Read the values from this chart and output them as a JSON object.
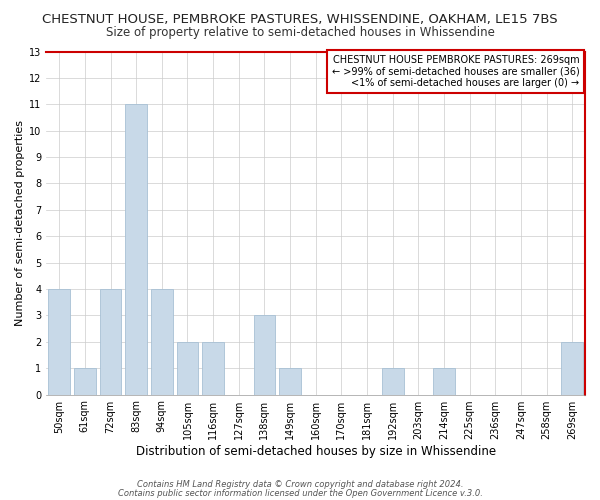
{
  "title": "CHESTNUT HOUSE, PEMBROKE PASTURES, WHISSENDINE, OAKHAM, LE15 7BS",
  "subtitle": "Size of property relative to semi-detached houses in Whissendine",
  "xlabel": "Distribution of semi-detached houses by size in Whissendine",
  "ylabel": "Number of semi-detached properties",
  "categories": [
    "50sqm",
    "61sqm",
    "72sqm",
    "83sqm",
    "94sqm",
    "105sqm",
    "116sqm",
    "127sqm",
    "138sqm",
    "149sqm",
    "160sqm",
    "170sqm",
    "181sqm",
    "192sqm",
    "203sqm",
    "214sqm",
    "225sqm",
    "236sqm",
    "247sqm",
    "258sqm",
    "269sqm"
  ],
  "values": [
    4,
    1,
    4,
    11,
    4,
    2,
    2,
    0,
    3,
    1,
    0,
    0,
    0,
    1,
    0,
    1,
    0,
    0,
    0,
    0,
    2
  ],
  "bar_color": "#c8d9e8",
  "bar_edge_color": "#a8c0d4",
  "annotation_box_text": "CHESTNUT HOUSE PEMBROKE PASTURES: 269sqm\n← >99% of semi-detached houses are smaller (36)\n<1% of semi-detached houses are larger (0) →",
  "annotation_box_color": "#ffffff",
  "annotation_box_edge_color": "#cc0000",
  "ylim": [
    0,
    13
  ],
  "yticks": [
    0,
    1,
    2,
    3,
    4,
    5,
    6,
    7,
    8,
    9,
    10,
    11,
    12,
    13
  ],
  "footer_line1": "Contains HM Land Registry data © Crown copyright and database right 2024.",
  "footer_line2": "Contains public sector information licensed under the Open Government Licence v.3.0.",
  "background_color": "#ffffff",
  "grid_color": "#cccccc",
  "title_fontsize": 9.5,
  "subtitle_fontsize": 8.5,
  "xlabel_fontsize": 8.5,
  "ylabel_fontsize": 8,
  "tick_fontsize": 7,
  "annot_fontsize": 7,
  "footer_fontsize": 6
}
